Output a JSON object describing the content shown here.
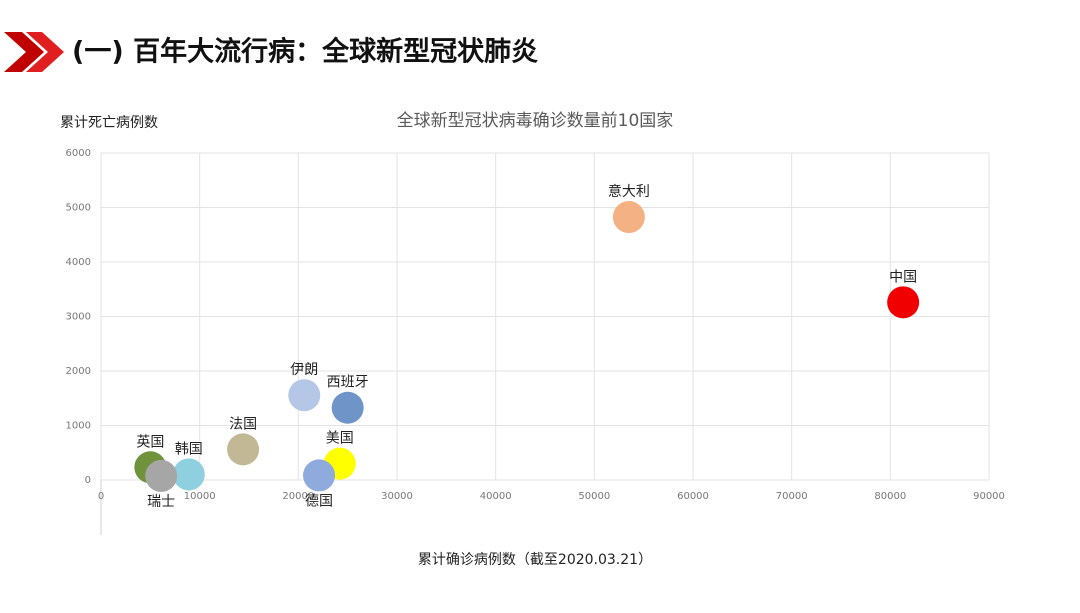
{
  "header": {
    "title": "(一) 百年大流行病：全球新型冠状肺炎"
  },
  "chart_data": {
    "type": "scatter",
    "title": "全球新型冠状病毒确诊数量前10国家",
    "y_label": "累计死亡病例数",
    "x_label": "累计确诊病例数（截至2020.03.21）",
    "points": [
      {
        "label": "中国",
        "x": 81300,
        "y": 3260,
        "color": "#f00000"
      },
      {
        "label": "意大利",
        "x": 53500,
        "y": 4825,
        "color": "#f4b183"
      },
      {
        "label": "伊朗",
        "x": 20600,
        "y": 1556,
        "color": "#b4c7e7"
      },
      {
        "label": "西班牙",
        "x": 25000,
        "y": 1326,
        "color": "#6f95c8"
      },
      {
        "label": "美国",
        "x": 24200,
        "y": 300,
        "color": "#ffff00"
      },
      {
        "label": "德国",
        "x": 22100,
        "y": 84,
        "color": "#8faadc"
      },
      {
        "label": "法国",
        "x": 14400,
        "y": 562,
        "color": "#c2b896"
      },
      {
        "label": "韩国",
        "x": 8900,
        "y": 102,
        "color": "#8ecfe0"
      },
      {
        "label": "英国",
        "x": 5000,
        "y": 233,
        "color": "#70923c"
      },
      {
        "label": "瑞士",
        "x": 6100,
        "y": 75,
        "color": "#a6a6a6"
      }
    ],
    "xlim": [
      0,
      90000
    ],
    "ylim": [
      0,
      6000
    ],
    "xticks": [
      0,
      10000,
      20000,
      30000,
      40000,
      50000,
      60000,
      70000,
      80000,
      90000
    ],
    "yticks": [
      0,
      1000,
      2000,
      3000,
      4000,
      5000,
      6000
    ],
    "grid": true
  }
}
